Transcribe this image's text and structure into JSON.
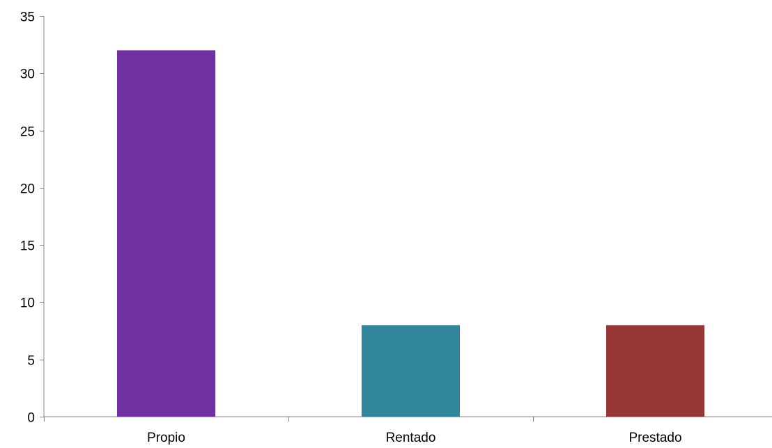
{
  "chart_data": {
    "type": "bar",
    "title": "",
    "xlabel": "",
    "ylabel": "",
    "categories": [
      "Propio",
      "Rentado",
      "Prestado"
    ],
    "values": [
      32,
      8,
      8
    ],
    "colors": [
      "#7030A0",
      "#31859C",
      "#953735"
    ],
    "ylim": [
      0,
      35
    ],
    "yticks": [
      0,
      5,
      10,
      15,
      20,
      25,
      30,
      35
    ],
    "grid": false,
    "legend": "none"
  }
}
